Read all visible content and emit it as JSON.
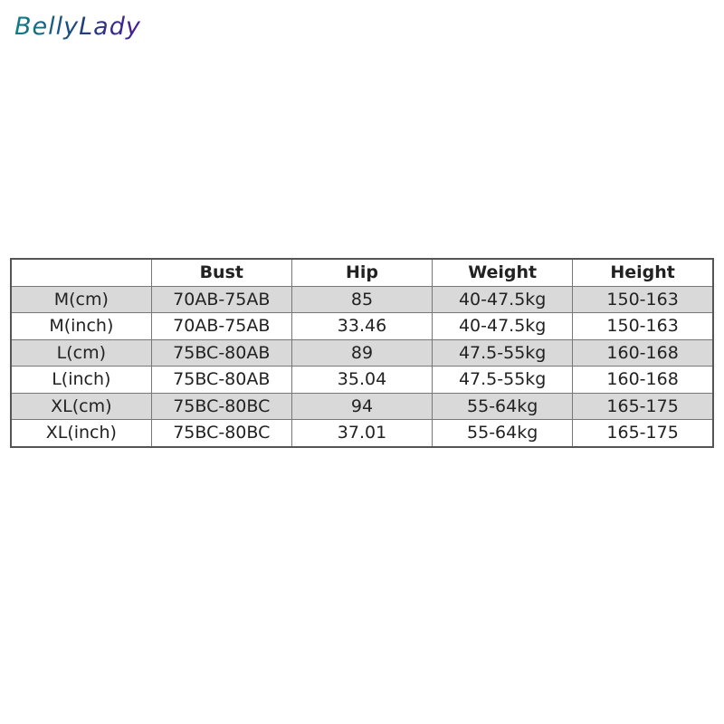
{
  "brand": {
    "logo": "BellyLady"
  },
  "table": {
    "headers": [
      "",
      "Bust",
      "Hip",
      "Weight",
      "Height"
    ],
    "rows": [
      [
        "M(cm)",
        "70AB-75AB",
        "85",
        "40-47.5kg",
        "150-163"
      ],
      [
        "M(inch)",
        "70AB-75AB",
        "33.46",
        "40-47.5kg",
        "150-163"
      ],
      [
        "L(cm)",
        "75BC-80AB",
        "89",
        "47.5-55kg",
        "160-168"
      ],
      [
        "L(inch)",
        "75BC-80AB",
        "35.04",
        "47.5-55kg",
        "160-168"
      ],
      [
        "XL(cm)",
        "75BC-80BC",
        "94",
        "55-64kg",
        "165-175"
      ],
      [
        "XL(inch)",
        "75BC-80BC",
        "37.01",
        "55-64kg",
        "165-175"
      ]
    ],
    "shaded_row_color": "#d9d9d9"
  }
}
